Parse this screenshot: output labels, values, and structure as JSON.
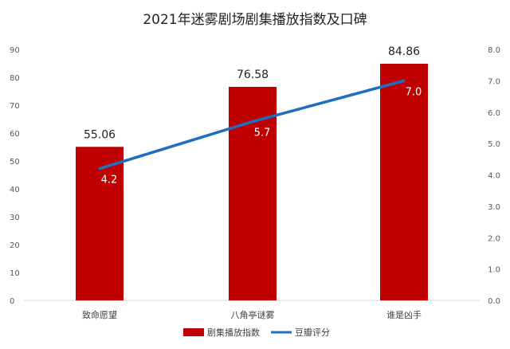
{
  "chart_data": {
    "type": "bar",
    "title": "2021年迷雾剧场剧集播放指数及口碑",
    "categories": [
      "致命愿望",
      "八角亭谜雾",
      "谁是凶手"
    ],
    "series": [
      {
        "name": "剧集播放指数",
        "type": "bar",
        "axis": "left",
        "color": "#C00000",
        "values": [
          55.06,
          76.58,
          84.86
        ],
        "labels": [
          "55.06",
          "76.58",
          "84.86"
        ]
      },
      {
        "name": "豆瓣评分",
        "type": "line",
        "axis": "right",
        "color": "#1F6FBF",
        "values": [
          4.2,
          5.7,
          7.0
        ],
        "labels": [
          "4.2",
          "5.7",
          "7.0"
        ]
      }
    ],
    "y_left": {
      "min": 0,
      "max": 90,
      "ticks": [
        "0",
        "10",
        "20",
        "30",
        "40",
        "50",
        "60",
        "70",
        "80",
        "90"
      ]
    },
    "y_right": {
      "min": 0,
      "max": 8,
      "ticks": [
        "0.0",
        "1.0",
        "2.0",
        "3.0",
        "4.0",
        "5.0",
        "6.0",
        "7.0",
        "8.0"
      ]
    },
    "grid": false,
    "legend": "bottom"
  }
}
